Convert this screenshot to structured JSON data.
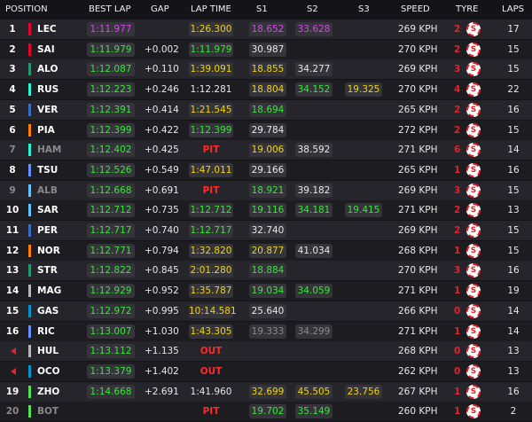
{
  "header": [
    "POSITION",
    "BEST LAP",
    "GAP",
    "LAP TIME",
    "S1",
    "S2",
    "S3",
    "SPEED",
    "TYRE",
    "LAPS"
  ],
  "rows": [
    {
      "position": "1",
      "driver": "LEC",
      "best_lap": "1:11.977",
      "gap": null,
      "lap_time": "1:26.300",
      "s1": "18.652",
      "s2": "33.628",
      "s3": null,
      "speed": "269 KPH",
      "tyre_age": "2",
      "tyre": "S",
      "laps": "17"
    },
    {
      "position": "2",
      "driver": "SAI",
      "best_lap": "1:11.979",
      "gap": "+0.002",
      "lap_time": "1:11.979",
      "s1": "30.987",
      "s2": null,
      "s3": null,
      "speed": "270 KPH",
      "tyre_age": "2",
      "tyre": "S",
      "laps": "15"
    },
    {
      "position": "3",
      "driver": "ALO",
      "best_lap": "1:12.087",
      "gap": "+0.110",
      "lap_time": "1:39.091",
      "s1": "18.855",
      "s2": "34.277",
      "s3": null,
      "speed": "269 KPH",
      "tyre_age": "3",
      "tyre": "S",
      "laps": "15"
    },
    {
      "position": "4",
      "driver": "RUS",
      "best_lap": "1:12.223",
      "gap": "+0.246",
      "lap_time": "1:12.281",
      "s1": "18.804",
      "s2": "34.152",
      "s3": "19.325",
      "speed": "270 KPH",
      "tyre_age": "4",
      "tyre": "S",
      "laps": "22"
    },
    {
      "position": "5",
      "driver": "VER",
      "best_lap": "1:12.391",
      "gap": "+0.414",
      "lap_time": "1:21.545",
      "s1": "18.694",
      "s2": null,
      "s3": null,
      "speed": "265 KPH",
      "tyre_age": "2",
      "tyre": "S",
      "laps": "16"
    },
    {
      "position": "6",
      "driver": "PIA",
      "best_lap": "1:12.399",
      "gap": "+0.422",
      "lap_time": "1:12.399",
      "s1": "29.784",
      "s2": null,
      "s3": null,
      "speed": "272 KPH",
      "tyre_age": "2",
      "tyre": "S",
      "laps": "15"
    },
    {
      "position": "7",
      "driver": "HAM",
      "best_lap": "1:12.402",
      "gap": "+0.425",
      "lap_time": "PIT",
      "s1": "19.006",
      "s2": "38.592",
      "s3": null,
      "speed": "271 KPH",
      "tyre_age": "6",
      "tyre": "S",
      "laps": "14"
    },
    {
      "position": "8",
      "driver": "TSU",
      "best_lap": "1:12.526",
      "gap": "+0.549",
      "lap_time": "1:47.011",
      "s1": "29.166",
      "s2": null,
      "s3": null,
      "speed": "265 KPH",
      "tyre_age": "1",
      "tyre": "S",
      "laps": "16"
    },
    {
      "position": "9",
      "driver": "ALB",
      "best_lap": "1:12.668",
      "gap": "+0.691",
      "lap_time": "PIT",
      "s1": "18.921",
      "s2": "39.182",
      "s3": null,
      "speed": "269 KPH",
      "tyre_age": "3",
      "tyre": "S",
      "laps": "15"
    },
    {
      "position": "10",
      "driver": "SAR",
      "best_lap": "1:12.712",
      "gap": "+0.735",
      "lap_time": "1:12.712",
      "s1": "19.116",
      "s2": "34.181",
      "s3": "19.415",
      "speed": "271 KPH",
      "tyre_age": "2",
      "tyre": "S",
      "laps": "13"
    },
    {
      "position": "11",
      "driver": "PER",
      "best_lap": "1:12.717",
      "gap": "+0.740",
      "lap_time": "1:12.717",
      "s1": "32.740",
      "s2": null,
      "s3": null,
      "speed": "269 KPH",
      "tyre_age": "2",
      "tyre": "S",
      "laps": "15"
    },
    {
      "position": "12",
      "driver": "NOR",
      "best_lap": "1:12.771",
      "gap": "+0.794",
      "lap_time": "1:32.820",
      "s1": "20.877",
      "s2": "41.034",
      "s3": null,
      "speed": "268 KPH",
      "tyre_age": "1",
      "tyre": "S",
      "laps": "15"
    },
    {
      "position": "13",
      "driver": "STR",
      "best_lap": "1:12.822",
      "gap": "+0.845",
      "lap_time": "2:01.280",
      "s1": "18.884",
      "s2": null,
      "s3": null,
      "speed": "270 KPH",
      "tyre_age": "3",
      "tyre": "S",
      "laps": "16"
    },
    {
      "position": "14",
      "driver": "MAG",
      "best_lap": "1:12.929",
      "gap": "+0.952",
      "lap_time": "1:35.787",
      "s1": "19.034",
      "s2": "34.059",
      "s3": null,
      "speed": "271 KPH",
      "tyre_age": "1",
      "tyre": "S",
      "laps": "19"
    },
    {
      "position": "15",
      "driver": "GAS",
      "best_lap": "1:12.972",
      "gap": "+0.995",
      "lap_time": "10:14.581",
      "s1": "25.640",
      "s2": null,
      "s3": null,
      "speed": "266 KPH",
      "tyre_age": "0",
      "tyre": "S",
      "laps": "14"
    },
    {
      "position": "16",
      "driver": "RIC",
      "best_lap": "1:13.007",
      "gap": "+1.030",
      "lap_time": "1:43.305",
      "s1": "19.333",
      "s2": "34.299",
      "s3": null,
      "speed": "271 KPH",
      "tyre_age": "1",
      "tyre": "S",
      "laps": "14"
    },
    {
      "position": null,
      "driver": "HUL",
      "best_lap": "1:13.112",
      "gap": "+1.135",
      "lap_time": "OUT",
      "s1": null,
      "s2": null,
      "s3": null,
      "speed": "268 KPH",
      "tyre_age": "0",
      "tyre": "S",
      "laps": "13"
    },
    {
      "position": null,
      "driver": "OCO",
      "best_lap": "1:13.379",
      "gap": "+1.402",
      "lap_time": "OUT",
      "s1": null,
      "s2": null,
      "s3": null,
      "speed": "262 KPH",
      "tyre_age": "0",
      "tyre": "S",
      "laps": "13"
    },
    {
      "position": "19",
      "driver": "ZHO",
      "best_lap": "1:14.668",
      "gap": "+2.691",
      "lap_time": "1:41.960",
      "s1": "32.699",
      "s2": "45.505",
      "s3": "23.756",
      "speed": "267 KPH",
      "tyre_age": "1",
      "tyre": "S",
      "laps": "16"
    },
    {
      "position": "20",
      "driver": "BOT",
      "best_lap": null,
      "gap": null,
      "lap_time": "PIT",
      "s1": "19.702",
      "s2": "35.149",
      "s3": null,
      "speed": "260 KPH",
      "tyre_age": "1",
      "tyre": "S",
      "laps": "2"
    }
  ]
}
